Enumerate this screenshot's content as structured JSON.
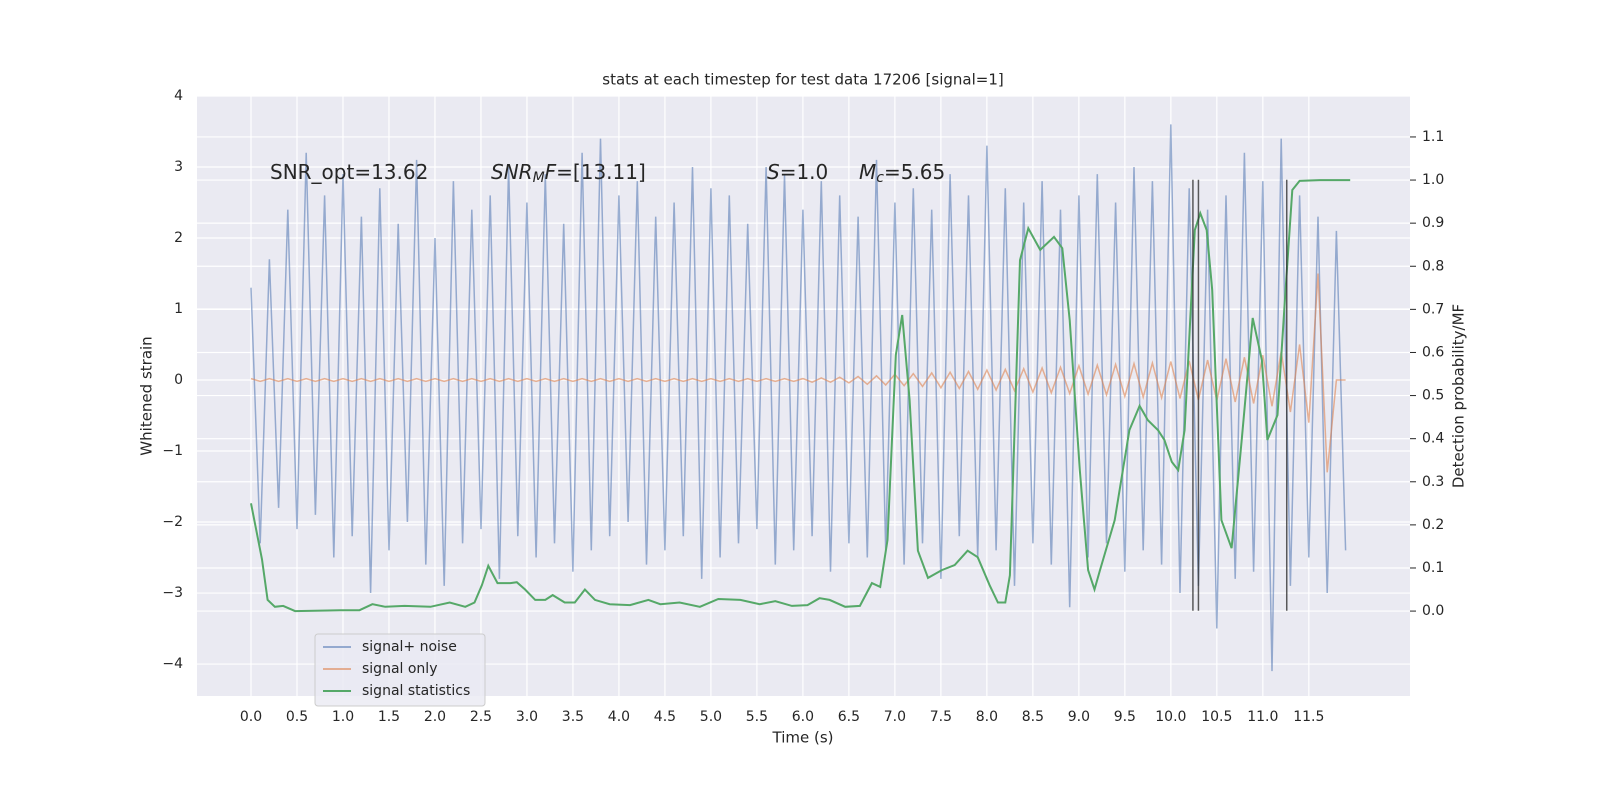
{
  "chart_data": {
    "type": "line",
    "title": "stats at each timestep for test data 17206 [signal=1]",
    "xlabel": "Time (s)",
    "ylabel": "Whitened strain",
    "y2label": "Detection probability/MF",
    "xlim": [
      -0.587,
      12.6
    ],
    "ylim": [
      -4.45,
      4.0
    ],
    "y2lim": [
      -0.197,
      1.195
    ],
    "xticks": [
      {
        "value": 0,
        "label": "0.0"
      },
      0.5,
      {
        "value": 1,
        "label": "1.0"
      },
      1.5,
      {
        "value": 2,
        "label": "2.0"
      },
      2.5,
      {
        "value": 3,
        "label": "3.0"
      },
      3.5,
      {
        "value": 4,
        "label": "4.0"
      },
      4.5,
      {
        "value": 5,
        "label": "5.0"
      },
      5.5,
      {
        "value": 6,
        "label": "6.0"
      },
      6.5,
      {
        "value": 7,
        "label": "7.0"
      },
      7.5,
      {
        "value": 8,
        "label": "8.0"
      },
      8.5,
      {
        "value": 9,
        "label": "9.0"
      },
      9.5,
      {
        "value": 10,
        "label": "10.0"
      },
      10.5,
      {
        "value": 11,
        "label": "11.0"
      },
      11.5
    ],
    "yticks": [
      {
        "value": -4,
        "label": "−4"
      },
      {
        "value": -3,
        "label": "−3"
      },
      {
        "value": -2,
        "label": "−2"
      },
      {
        "value": -1,
        "label": "−1"
      },
      0,
      1,
      2,
      3,
      4
    ],
    "y2ticks": [
      {
        "value": 0,
        "label": "0.0"
      },
      0.1,
      0.2,
      0.3,
      0.4,
      0.5,
      0.6,
      0.7,
      0.8,
      0.9,
      {
        "value": 1,
        "label": "1.0"
      },
      1.1
    ],
    "grid": true,
    "legend": "lower left",
    "annotations": [
      [
        {
          "text": "SNR_opt=13.62"
        }
      ],
      [
        {
          "text": "SNR",
          "italic": true
        },
        {
          "text": "M",
          "italic": true,
          "sub": true
        },
        {
          "text": "F",
          "italic": true
        },
        {
          "text": "=[13.11]"
        }
      ],
      [
        {
          "text": "S",
          "italic": true
        },
        {
          "text": "=1.0"
        }
      ],
      [
        {
          "text": "M",
          "italic": true
        },
        {
          "text": "c",
          "italic": true,
          "sub": true
        },
        {
          "text": "=5.65"
        }
      ]
    ],
    "x": [
      0,
      0.1,
      0.2,
      0.3,
      0.4,
      0.5,
      0.6,
      0.7,
      0.8,
      0.9,
      1,
      1.1,
      1.2,
      1.3,
      1.4,
      1.5,
      1.6,
      1.7,
      1.8,
      1.9,
      2,
      2.1,
      2.2,
      2.3,
      2.4,
      2.5,
      2.6,
      2.7,
      2.8,
      2.9,
      3,
      3.1,
      3.2,
      3.3,
      3.4,
      3.5,
      3.6,
      3.7,
      3.8,
      3.9,
      4,
      4.1,
      4.2,
      4.3,
      4.4,
      4.5,
      4.6,
      4.7,
      4.8,
      4.9,
      5,
      5.1,
      5.2,
      5.3,
      5.4,
      5.5,
      5.6,
      5.7,
      5.8,
      5.9,
      6,
      6.1,
      6.2,
      6.3,
      6.4,
      6.5,
      6.6,
      6.7,
      6.8,
      6.9,
      7,
      7.1,
      7.2,
      7.3,
      7.4,
      7.5,
      7.6,
      7.7,
      7.8,
      7.9,
      8,
      8.1,
      8.2,
      8.3,
      8.4,
      8.5,
      8.6,
      8.7,
      8.8,
      8.9,
      9,
      9.1,
      9.2,
      9.3,
      9.4,
      9.5,
      9.6,
      9.7,
      9.8,
      9.9,
      10,
      10.1,
      10.2,
      10.3,
      10.4,
      10.5,
      10.6,
      10.7,
      10.8,
      10.9,
      11,
      11.1,
      11.2,
      11.3,
      11.4,
      11.5,
      11.6,
      11.7,
      11.8,
      11.9
    ],
    "series": [
      {
        "name": "signal+ noise",
        "color": "#4c72b0",
        "opacity": 0.55,
        "values": [
          1.3,
          -2.3,
          1.7,
          -1.8,
          2.4,
          -2.1,
          3.2,
          -1.9,
          2.6,
          -2.5,
          2.9,
          -2.2,
          2.3,
          -3.0,
          2.7,
          -2.4,
          2.2,
          -2.0,
          3.1,
          -2.6,
          2.0,
          -2.9,
          2.8,
          -2.3,
          2.4,
          -2.1,
          2.6,
          -2.8,
          3.0,
          -2.2,
          2.5,
          -2.5,
          2.9,
          -2.3,
          2.2,
          -2.7,
          3.2,
          -2.4,
          3.4,
          -2.2,
          2.6,
          -2.0,
          2.8,
          -2.6,
          2.3,
          -2.4,
          2.5,
          -2.2,
          3.0,
          -2.8,
          2.7,
          -2.5,
          2.6,
          -2.3,
          2.2,
          -2.1,
          3.0,
          -2.6,
          2.9,
          -2.4,
          2.4,
          -2.2,
          2.8,
          -2.7,
          2.6,
          -2.3,
          2.3,
          -2.5,
          3.1,
          -2.4,
          2.5,
          -2.6,
          2.7,
          -2.3,
          2.4,
          -2.8,
          2.9,
          -2.2,
          2.6,
          -2.5,
          3.3,
          -2.4,
          2.7,
          -2.9,
          2.5,
          -2.3,
          2.8,
          -2.6,
          2.4,
          -3.2,
          2.6,
          -2.5,
          2.9,
          -2.3,
          2.5,
          -2.7,
          3.0,
          -2.4,
          2.8,
          -2.6,
          3.6,
          -3.0,
          2.7,
          -2.9,
          2.4,
          -3.5,
          2.6,
          -2.8,
          3.2,
          -2.7,
          2.8,
          -4.1,
          3.4,
          -2.9,
          2.6,
          -2.5,
          2.3,
          -3.0,
          2.1,
          -2.4
        ]
      },
      {
        "name": "signal only",
        "color": "#dd8452",
        "opacity": 0.6,
        "values": [
          0.02,
          -0.02,
          0.02,
          -0.02,
          0.02,
          -0.02,
          0.02,
          -0.02,
          0.02,
          -0.02,
          0.02,
          -0.02,
          0.02,
          -0.02,
          0.02,
          -0.02,
          0.02,
          -0.02,
          0.02,
          -0.02,
          0.02,
          -0.02,
          0.02,
          -0.02,
          0.02,
          -0.02,
          0.02,
          -0.02,
          0.02,
          -0.02,
          0.02,
          -0.02,
          0.02,
          -0.02,
          0.02,
          -0.02,
          0.02,
          -0.02,
          0.02,
          -0.02,
          0.02,
          -0.02,
          0.02,
          -0.02,
          0.02,
          -0.02,
          0.02,
          -0.02,
          0.02,
          -0.02,
          0.02,
          -0.02,
          0.02,
          -0.02,
          0.02,
          -0.02,
          0.02,
          -0.02,
          0.02,
          -0.02,
          0.02,
          -0.03,
          0.03,
          -0.03,
          0.04,
          -0.04,
          0.05,
          -0.06,
          0.06,
          -0.07,
          0.08,
          -0.08,
          0.09,
          -0.09,
          0.1,
          -0.11,
          0.11,
          -0.12,
          0.12,
          -0.13,
          0.14,
          -0.14,
          0.15,
          -0.15,
          0.16,
          -0.17,
          0.17,
          -0.18,
          0.18,
          -0.19,
          0.2,
          -0.2,
          0.21,
          -0.21,
          0.22,
          -0.23,
          0.23,
          -0.24,
          0.24,
          -0.25,
          0.26,
          -0.26,
          0.27,
          -0.28,
          0.28,
          -0.29,
          0.3,
          -0.31,
          0.32,
          -0.33,
          0.35,
          -0.37,
          0.4,
          -0.45,
          0.5,
          -0.6,
          1.5,
          -1.3,
          0.0,
          0.0
        ]
      },
      {
        "name": "signal statistics",
        "color": "#55a868",
        "axis": "y2",
        "x": [
          0,
          0.12,
          0.18,
          0.26,
          0.35,
          0.48,
          0.97,
          1.18,
          1.32,
          1.46,
          1.67,
          1.95,
          2.16,
          2.33,
          2.43,
          2.51,
          2.58,
          2.68,
          2.82,
          2.89,
          2.98,
          3.09,
          3.2,
          3.28,
          3.41,
          3.52,
          3.63,
          3.74,
          3.9,
          4.12,
          4.32,
          4.45,
          4.66,
          4.88,
          5.08,
          5.32,
          5.53,
          5.7,
          5.88,
          6.05,
          6.18,
          6.29,
          6.46,
          6.62,
          6.75,
          6.84,
          6.92,
          7.01,
          7.08,
          7.16,
          7.25,
          7.36,
          7.51,
          7.65,
          7.79,
          7.9,
          8.03,
          8.12,
          8.2,
          8.25,
          8.36,
          8.45,
          8.58,
          8.73,
          8.82,
          8.9,
          9.01,
          9.1,
          9.17,
          9.23,
          9.39,
          9.55,
          9.66,
          9.75,
          9.86,
          9.93,
          10.01,
          10.08,
          10.15,
          10.21,
          10.26,
          10.32,
          10.39,
          10.45,
          10.55,
          10.66,
          10.77,
          10.89,
          10.99,
          11.05,
          11.16,
          11.24,
          11.32,
          11.4,
          11.62,
          11.95
        ],
        "values": [
          0.25,
          0.12,
          0.026,
          0.01,
          0.012,
          0.0,
          0.002,
          0.002,
          0.016,
          0.01,
          0.012,
          0.01,
          0.02,
          0.01,
          0.02,
          0.06,
          0.105,
          0.065,
          0.065,
          0.067,
          0.05,
          0.026,
          0.026,
          0.037,
          0.02,
          0.02,
          0.05,
          0.026,
          0.016,
          0.014,
          0.026,
          0.016,
          0.02,
          0.01,
          0.028,
          0.026,
          0.016,
          0.023,
          0.012,
          0.014,
          0.03,
          0.026,
          0.01,
          0.012,
          0.065,
          0.056,
          0.165,
          0.594,
          0.687,
          0.49,
          0.14,
          0.077,
          0.095,
          0.107,
          0.14,
          0.125,
          0.06,
          0.02,
          0.02,
          0.083,
          0.814,
          0.888,
          0.838,
          0.868,
          0.842,
          0.675,
          0.327,
          0.095,
          0.05,
          0.095,
          0.211,
          0.42,
          0.476,
          0.443,
          0.42,
          0.397,
          0.346,
          0.327,
          0.42,
          0.675,
          0.884,
          0.923,
          0.884,
          0.745,
          0.211,
          0.146,
          0.397,
          0.68,
          0.582,
          0.397,
          0.455,
          0.722,
          0.977,
          0.998,
          1.0,
          1.0
        ]
      }
    ],
    "vlines": {
      "color": "#333333",
      "x": [
        10.24,
        10.3,
        11.26
      ],
      "ymin": -3.25,
      "ymax": 2.82
    }
  }
}
